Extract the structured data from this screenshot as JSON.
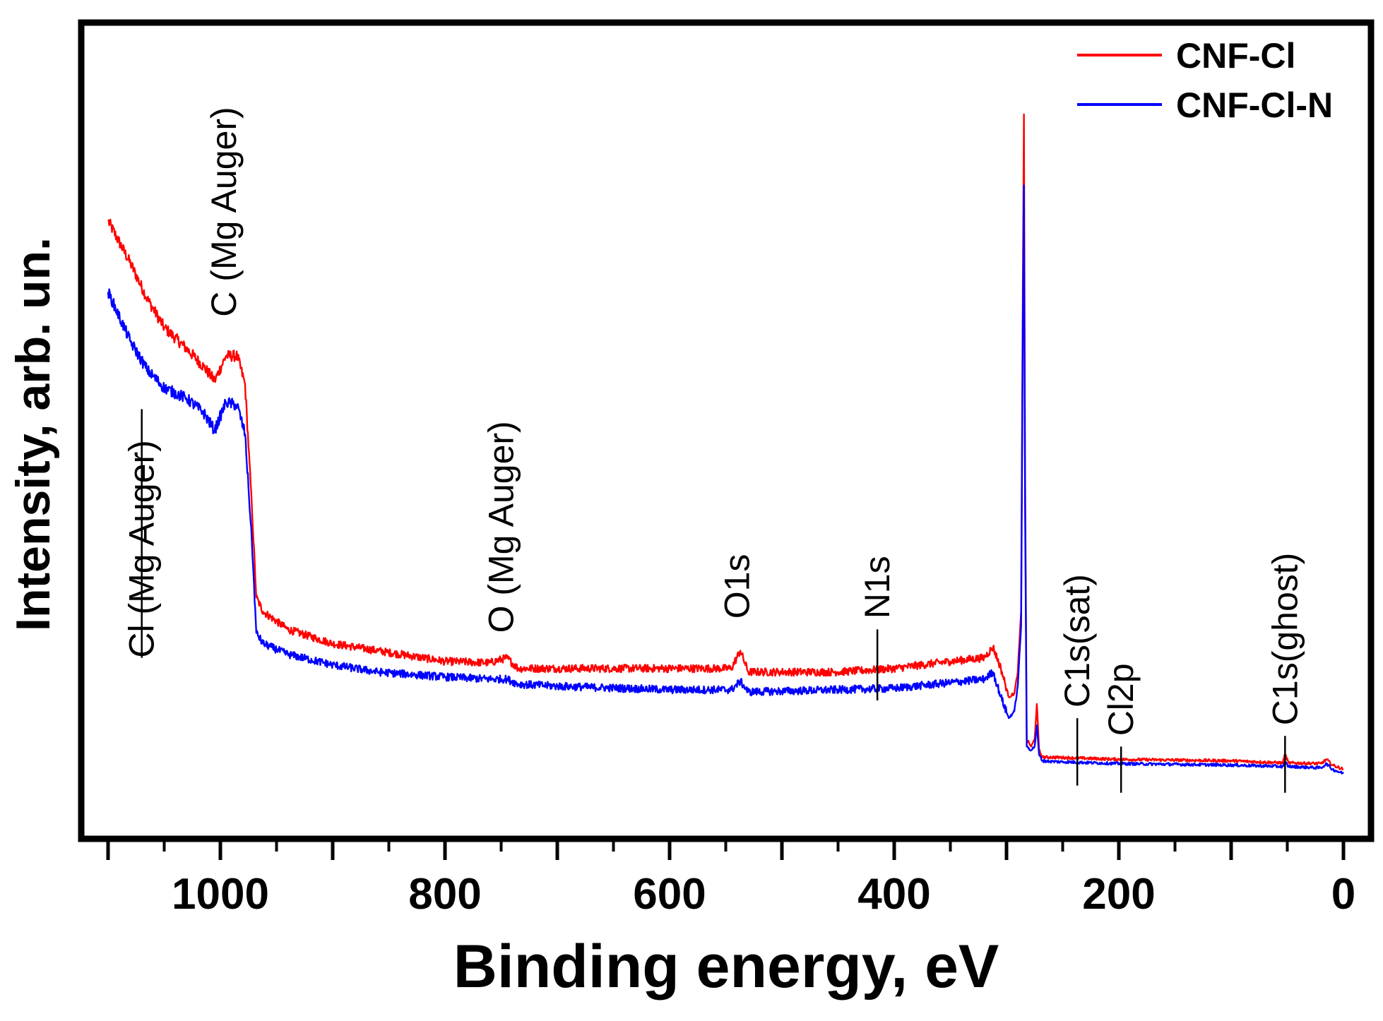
{
  "chart_data": {
    "type": "line",
    "title": "",
    "xlabel": "Binding energy, eV",
    "ylabel": "Intensity, arb. un.",
    "xlim": [
      1100,
      0
    ],
    "ylim": [
      0,
      100
    ],
    "x_reversed": true,
    "x_ticks": [
      1000,
      800,
      600,
      400,
      200,
      0
    ],
    "y_ticks_shown": false,
    "legend_position": "top-right",
    "series": [
      {
        "name": "CNF-Cl",
        "color": "#ff0000",
        "points": [
          [
            1100,
            85
          ],
          [
            1080,
            79
          ],
          [
            1065,
            74
          ],
          [
            1050,
            70
          ],
          [
            1030,
            67
          ],
          [
            1015,
            64.5
          ],
          [
            1005,
            62.5
          ],
          [
            995,
            66
          ],
          [
            985,
            66
          ],
          [
            978,
            62
          ],
          [
            972,
            45
          ],
          [
            968,
            32
          ],
          [
            962,
            30
          ],
          [
            940,
            27.5
          ],
          [
            900,
            25.5
          ],
          [
            860,
            24.5
          ],
          [
            800,
            23
          ],
          [
            760,
            22.8
          ],
          [
            745,
            23.5
          ],
          [
            735,
            22
          ],
          [
            700,
            22
          ],
          [
            600,
            22
          ],
          [
            545,
            22
          ],
          [
            537,
            24.5
          ],
          [
            530,
            21.5
          ],
          [
            500,
            21.5
          ],
          [
            450,
            21.5
          ],
          [
            400,
            22
          ],
          [
            350,
            23
          ],
          [
            320,
            23.5
          ],
          [
            312,
            25
          ],
          [
            305,
            22
          ],
          [
            298,
            18
          ],
          [
            293,
            18.5
          ],
          [
            290,
            21.5
          ],
          [
            287,
            30
          ],
          [
            285.5,
            75
          ],
          [
            284.5,
            100
          ],
          [
            283.5,
            50
          ],
          [
            282,
            12
          ],
          [
            278,
            11
          ],
          [
            275,
            12
          ],
          [
            273,
            17
          ],
          [
            271,
            10.5
          ],
          [
            268,
            9.5
          ],
          [
            260,
            9.5
          ],
          [
            200,
            9.2
          ],
          [
            100,
            9
          ],
          [
            54,
            8.7
          ],
          [
            52,
            10
          ],
          [
            49,
            8.7
          ],
          [
            20,
            8.6
          ],
          [
            15,
            9.2
          ],
          [
            10,
            8.4
          ],
          [
            0,
            7.8
          ]
        ]
      },
      {
        "name": "CNF-Cl-N",
        "color": "#0000ff",
        "points": [
          [
            1100,
            75
          ],
          [
            1080,
            68
          ],
          [
            1065,
            64
          ],
          [
            1050,
            61.5
          ],
          [
            1030,
            60
          ],
          [
            1015,
            58
          ],
          [
            1005,
            55.5
          ],
          [
            995,
            59.5
          ],
          [
            985,
            59
          ],
          [
            978,
            55
          ],
          [
            972,
            40
          ],
          [
            968,
            27
          ],
          [
            962,
            25.5
          ],
          [
            940,
            24
          ],
          [
            900,
            22.5
          ],
          [
            860,
            21.5
          ],
          [
            800,
            20.8
          ],
          [
            760,
            20.5
          ],
          [
            745,
            20.5
          ],
          [
            735,
            19.8
          ],
          [
            700,
            19.5
          ],
          [
            600,
            19
          ],
          [
            545,
            19
          ],
          [
            537,
            20.2
          ],
          [
            530,
            18.7
          ],
          [
            500,
            18.8
          ],
          [
            450,
            19
          ],
          [
            400,
            19.2
          ],
          [
            350,
            20
          ],
          [
            320,
            20.5
          ],
          [
            312,
            21.5
          ],
          [
            305,
            18
          ],
          [
            298,
            15
          ],
          [
            293,
            16
          ],
          [
            290,
            19.5
          ],
          [
            287,
            28
          ],
          [
            285.5,
            70
          ],
          [
            284.5,
            90
          ],
          [
            283.5,
            45
          ],
          [
            282,
            11
          ],
          [
            278,
            10.5
          ],
          [
            275,
            11
          ],
          [
            273,
            14
          ],
          [
            271,
            9.8
          ],
          [
            268,
            9
          ],
          [
            260,
            8.9
          ],
          [
            200,
            8.6
          ],
          [
            100,
            8.4
          ],
          [
            54,
            8.2
          ],
          [
            52,
            8.8
          ],
          [
            49,
            8.2
          ],
          [
            20,
            8
          ],
          [
            15,
            8.6
          ],
          [
            10,
            7.8
          ],
          [
            0,
            7.2
          ]
        ]
      }
    ],
    "annotations": [
      {
        "text": "Cl (Mg Auger)",
        "x": 1070,
        "line_y": [
          23.5,
          58.5
        ],
        "label_bottom_y": 23.5,
        "line_above_label": true
      },
      {
        "text": "C (Mg Auger)",
        "x": 997,
        "label_bottom_y": 71.5
      },
      {
        "text": "O (Mg Auger)",
        "x": 750,
        "label_bottom_y": 27
      },
      {
        "text": "O1s",
        "x": 540,
        "label_bottom_y": 29
      },
      {
        "text": "N1s",
        "x": 415,
        "line_y": [
          17.5,
          27.5
        ],
        "label_bottom_y": 29
      },
      {
        "text": "C1s(sat)",
        "x": 237,
        "line_y": [
          5.5,
          15
        ],
        "label_bottom_y": 16.5
      },
      {
        "text": "Cl2p",
        "x": 198,
        "line_y": [
          4.5,
          11
        ],
        "label_bottom_y": 12.5
      },
      {
        "text": "C1s(ghost)",
        "x": 52,
        "line_y": [
          4.5,
          12.5
        ],
        "label_bottom_y": 14
      }
    ]
  }
}
